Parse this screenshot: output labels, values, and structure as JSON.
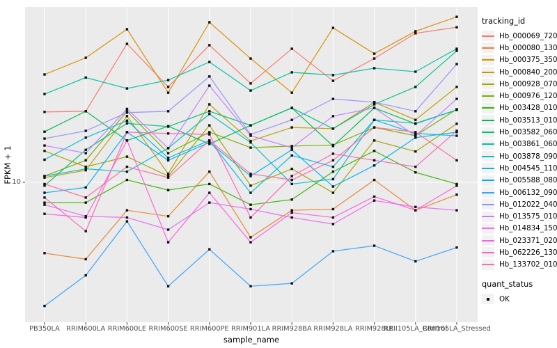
{
  "style": {
    "panel_bg": "#EBEBEB",
    "grid_color": "#FFFFFF",
    "axis_text_color": "#4D4D4D",
    "tick_color": "#333333",
    "point_color": "#111111",
    "legend_key_bg": "#F2F2F2"
  },
  "chart_data": {
    "type": "line",
    "title": "",
    "xlabel": "sample_name",
    "ylabel": "FPKM + 1",
    "y_scale": "log10",
    "ylim": [
      1.9,
      80
    ],
    "grid": "on",
    "point_shape": "square",
    "y_ticks": [
      {
        "value": 10,
        "label": "10"
      }
    ],
    "categories": [
      "PB350LA",
      "RRIM600LA",
      "RRIM600LE",
      "RRIM600SE",
      "RRIM600PE",
      "RRIM901LA",
      "RRIM928BA",
      "RRIM928LA",
      "RRIM928LE",
      "RRII105LA_Control",
      "RRII105LA_Stressed"
    ],
    "legend_title": "tracking_id",
    "legend_position": "right",
    "series": [
      {
        "name": "Hb_000069_720",
        "color": "#F8766D",
        "values": [
          23.7,
          23.9,
          54.6,
          32.2,
          53.7,
          33.6,
          51.4,
          34.7,
          45.6,
          62.1,
          66.9
        ]
      },
      {
        "name": "Hb_000080_130",
        "color": "#EA8331",
        "values": [
          4.2,
          3.9,
          7.1,
          6.6,
          11.4,
          5.1,
          7.1,
          7.2,
          10.3,
          7.1,
          8.6
        ]
      },
      {
        "name": "Hb_000375_350",
        "color": "#D89000",
        "values": [
          37.5,
          46.0,
          65.3,
          30.0,
          71.1,
          45.6,
          30.0,
          66.4,
          48.4,
          63.7,
          76.0
        ]
      },
      {
        "name": "Hb_000840_200",
        "color": "#C09B00",
        "values": [
          10.6,
          11.6,
          22.5,
          11.1,
          26.0,
          16.6,
          19.6,
          19.3,
          26.7,
          21.5,
          32.2
        ]
      },
      {
        "name": "Hb_000928_070",
        "color": "#A3A500",
        "values": [
          14.7,
          12.1,
          13.7,
          10.8,
          20.1,
          9.6,
          11.8,
          8.8,
          16.7,
          14.6,
          20.5
        ]
      },
      {
        "name": "Hb_000976_120",
        "color": "#7CAE00",
        "values": [
          10.8,
          13.1,
          23.9,
          14.3,
          18.5,
          15.3,
          15.6,
          15.8,
          19.6,
          17.7,
          24.5
        ]
      },
      {
        "name": "Hb_003428_010",
        "color": "#39B600",
        "values": [
          7.8,
          7.8,
          10.3,
          9.1,
          9.8,
          7.6,
          8.1,
          11.4,
          14.7,
          11.3,
          9.8
        ]
      },
      {
        "name": "Hb_003513_010",
        "color": "#00BB4E",
        "values": [
          18.6,
          23.9,
          16.7,
          19.9,
          16.0,
          20.1,
          24.9,
          15.6,
          24.9,
          20.5,
          24.3
        ]
      },
      {
        "name": "Hb_003582_060",
        "color": "#00BF7D",
        "values": [
          9.6,
          14.9,
          20.6,
          19.8,
          23.9,
          20.1,
          24.9,
          19.3,
          26.0,
          32.2,
          50.1
        ]
      },
      {
        "name": "Hb_003861_060",
        "color": "#00C1A3",
        "values": [
          29.5,
          36.1,
          31.6,
          35.0,
          43.7,
          30.8,
          38.5,
          37.2,
          40.5,
          38.8,
          51.4
        ]
      },
      {
        "name": "Hb_003878_090",
        "color": "#00BFC4",
        "values": [
          10.8,
          11.8,
          11.4,
          15.2,
          23.1,
          16.3,
          9.8,
          10.4,
          21.5,
          20.6,
          24.3
        ]
      },
      {
        "name": "Hb_004545_110",
        "color": "#00BAE0",
        "values": [
          13.2,
          17.3,
          21.3,
          13.5,
          16.7,
          8.8,
          13.9,
          12.1,
          21.5,
          18.2,
          17.7
        ]
      },
      {
        "name": "Hb_005588_080",
        "color": "#00B0F6",
        "values": [
          8.8,
          9.4,
          18.5,
          13.1,
          16.3,
          10.8,
          14.9,
          9.5,
          12.3,
          17.3,
          18.5
        ]
      },
      {
        "name": "Hb_006132_090",
        "color": "#35A2FF",
        "values": [
          2.2,
          3.2,
          6.2,
          2.8,
          4.4,
          2.8,
          2.9,
          4.3,
          4.6,
          3.8,
          4.5
        ]
      },
      {
        "name": "Hb_012022_040",
        "color": "#9590FF",
        "values": [
          17.1,
          18.8,
          23.5,
          23.9,
          36.6,
          18.0,
          21.5,
          27.8,
          26.7,
          23.9,
          42.6
        ]
      },
      {
        "name": "Hb_013575_010",
        "color": "#C77CFF",
        "values": [
          15.7,
          14.3,
          24.6,
          15.2,
          32.7,
          17.7,
          15.3,
          22.5,
          24.9,
          17.7,
          27.8
        ]
      },
      {
        "name": "Hb_014834_150",
        "color": "#E76BF3",
        "values": [
          7.6,
          6.6,
          6.5,
          5.6,
          7.8,
          7.2,
          6.5,
          6.0,
          8.0,
          7.4,
          7.1
        ]
      },
      {
        "name": "Hb_023371_020",
        "color": "#FA62DB",
        "values": [
          6.8,
          6.5,
          16.7,
          4.8,
          8.8,
          4.8,
          6.9,
          6.5,
          8.4,
          7.1,
          9.6
        ]
      },
      {
        "name": "Hb_062226_130",
        "color": "#FF62BC",
        "values": [
          8.3,
          5.5,
          18.5,
          18.2,
          18.0,
          6.5,
          10.8,
          14.2,
          13.1,
          12.1,
          18.8
        ]
      },
      {
        "name": "Hb_133702_010",
        "color": "#FF6A98",
        "values": [
          9.8,
          8.3,
          12.1,
          10.6,
          16.7,
          11.1,
          10.3,
          13.1,
          19.6,
          18.5,
          13.1
        ]
      }
    ],
    "legend2": {
      "title": "quant_status",
      "items": [
        {
          "label": "OK",
          "marker": "black-square"
        }
      ]
    }
  }
}
